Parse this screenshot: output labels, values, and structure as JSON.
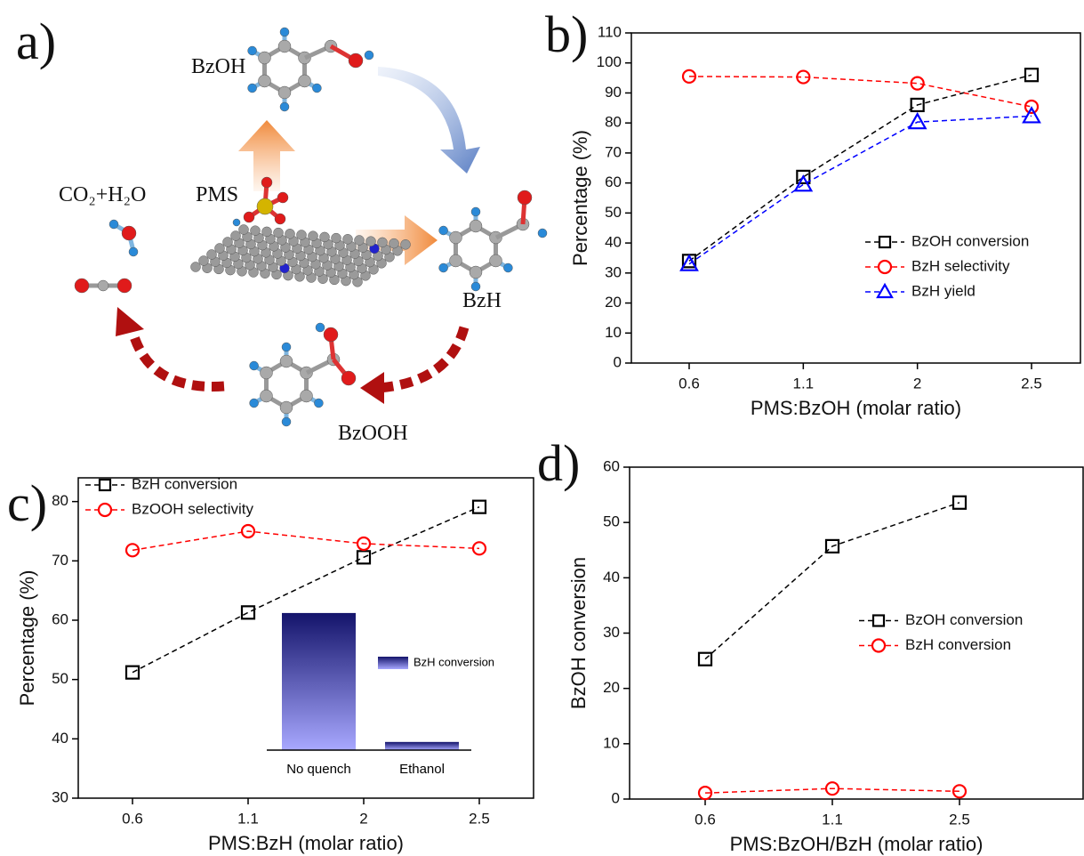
{
  "diagram": {
    "panel_label": "a)",
    "labels": [
      "BzOH",
      "PMS",
      "CO₂+H₂O",
      "BzH",
      "BzOOH"
    ]
  },
  "chart_data": [
    {
      "type": "line",
      "panel_label": "b)",
      "x_label": "PMS:BzOH (molar ratio)",
      "y_label": "Percentage (%)",
      "categories": [
        "0.6",
        "1.1",
        "2",
        "2.5"
      ],
      "ylim": [
        0,
        110
      ],
      "yticks": [
        0,
        10,
        20,
        30,
        40,
        50,
        60,
        70,
        80,
        90,
        100,
        110
      ],
      "legend": "lower right",
      "series": [
        {
          "name": "BzOH conversion",
          "color": "#000000",
          "marker": "square",
          "linestyle": "dashed",
          "values": [
            34,
            62,
            86,
            96
          ]
        },
        {
          "name": "BzH selectivity",
          "color": "#ff0000",
          "marker": "circle",
          "linestyle": "dashed",
          "values": [
            95.5,
            95.3,
            93.2,
            85.4
          ]
        },
        {
          "name": "BzH yield",
          "color": "#0000ff",
          "marker": "triangle",
          "linestyle": "dashed",
          "values": [
            33,
            59.5,
            80.3,
            82.3
          ]
        }
      ]
    },
    {
      "type": "line",
      "panel_label": "c)",
      "x_label": "PMS:BzH (molar ratio)",
      "y_label": "Percentage (%)",
      "categories": [
        "0.6",
        "1.1",
        "2",
        "2.5"
      ],
      "ylim": [
        30,
        84
      ],
      "yticks": [
        30,
        40,
        50,
        60,
        70,
        80
      ],
      "legend": "upper left",
      "series": [
        {
          "name": "BzH conversion",
          "color": "#000000",
          "marker": "square",
          "linestyle": "dashed",
          "values": [
            51.2,
            61.3,
            70.6,
            79.1
          ]
        },
        {
          "name": "BzOOH selectivity",
          "color": "#ff0000",
          "marker": "circle",
          "linestyle": "dashed",
          "values": [
            71.8,
            75,
            72.9,
            72.1
          ]
        }
      ],
      "inset": {
        "type": "bar",
        "categories": [
          "No quench",
          "Ethanol"
        ],
        "ylim": [
          0,
          64
        ],
        "series": [
          {
            "name": "BzH conversion",
            "gradient": [
              "#14146b",
              "#a8a8ff"
            ],
            "values": [
              60.5,
              3.6
            ]
          }
        ]
      }
    },
    {
      "type": "line",
      "panel_label": "d)",
      "x_label": "PMS:BzOH/BzH (molar ratio)",
      "y_label": "BzOH conversion",
      "categories": [
        "0.6",
        "1.1",
        "2.5"
      ],
      "ylim": [
        0,
        60
      ],
      "yticks": [
        0,
        10,
        20,
        30,
        40,
        50,
        60
      ],
      "legend": "center right",
      "series": [
        {
          "name": "BzOH conversion",
          "color": "#000000",
          "marker": "square",
          "linestyle": "dashed",
          "values": [
            25.3,
            45.7,
            53.6
          ]
        },
        {
          "name": "BzH conversion",
          "color": "#ff0000",
          "marker": "circle",
          "linestyle": "dashed",
          "values": [
            1.1,
            1.9,
            1.4
          ]
        }
      ]
    }
  ]
}
